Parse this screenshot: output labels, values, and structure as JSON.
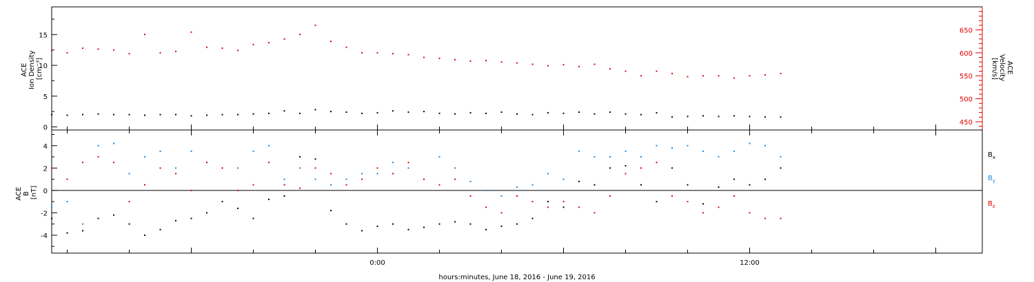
{
  "chart_data": {
    "type": "scatter",
    "xlabel": "hours:minutes, June 18, 2016 - June 19, 2016",
    "x_axis": {
      "unit": "hours relative to 2016-06-19 00:00",
      "range": [
        -10.5,
        19.5
      ],
      "tick_labels": [
        {
          "x": 0,
          "text": "0:00"
        },
        {
          "x": 12,
          "text": "12:00"
        }
      ]
    },
    "colors": {
      "black": "#000000",
      "red": "#e00000",
      "blue": "#1a86d8"
    },
    "panels": [
      {
        "id": "top",
        "ylabel_left": [
          "ACE",
          "Ion Density",
          "[cm⁻³]"
        ],
        "ylabel_right": [
          "ACE",
          "Velocity",
          "[km/s]"
        ],
        "ylim_left": [
          -0.5,
          19.5
        ],
        "yticks_left": [
          0,
          5,
          10,
          15
        ],
        "ylim_right": [
          432,
          700
        ],
        "yticks_right": [
          450,
          500,
          550,
          600,
          650
        ],
        "grid": false,
        "series": [
          {
            "label": "Ion Density",
            "axis": "left",
            "color": "#000000",
            "x": [
              -10.5,
              -10.0,
              -9.5,
              -9.0,
              -8.5,
              -8.0,
              -7.5,
              -7.0,
              -6.5,
              -6.0,
              -5.5,
              -5.0,
              -4.5,
              -4.0,
              -3.5,
              -3.0,
              -2.5,
              -2.0,
              -1.5,
              -1.0,
              -0.5,
              0.0,
              0.5,
              1.0,
              1.5,
              2.0,
              2.5,
              3.0,
              3.5,
              4.0,
              4.5,
              5.0,
              5.5,
              6.0,
              6.5,
              7.0,
              7.5,
              8.0,
              8.5,
              9.0,
              9.5,
              10.0,
              10.5,
              11.0,
              11.5,
              12.0,
              12.5,
              13.0
            ],
            "y": [
              2.0,
              1.9,
              2.0,
              2.1,
              2.0,
              2.0,
              1.9,
              2.0,
              2.0,
              1.8,
              1.9,
              2.0,
              2.0,
              2.1,
              2.2,
              2.6,
              2.2,
              2.8,
              2.5,
              2.4,
              2.2,
              2.3,
              2.6,
              2.4,
              2.5,
              2.2,
              2.1,
              2.3,
              2.2,
              2.4,
              2.1,
              2.0,
              2.3,
              2.2,
              2.4,
              2.1,
              2.4,
              2.1,
              2.0,
              2.3,
              1.6,
              1.7,
              1.8,
              1.7,
              1.8,
              1.7,
              1.6,
              1.6
            ]
          },
          {
            "label": "Velocity",
            "axis": "right",
            "color": "#e00000",
            "x": [
              -10.5,
              -10.0,
              -9.5,
              -9.0,
              -8.5,
              -8.0,
              -7.5,
              -7.0,
              -6.5,
              -6.0,
              -5.5,
              -5.0,
              -4.5,
              -4.0,
              -3.5,
              -3.0,
              -2.5,
              -2.0,
              -1.5,
              -1.0,
              -0.5,
              0.0,
              0.5,
              1.0,
              1.5,
              2.0,
              2.5,
              3.0,
              3.5,
              4.0,
              4.5,
              5.0,
              5.5,
              6.0,
              6.5,
              7.0,
              7.5,
              8.0,
              8.5,
              9.0,
              9.5,
              10.0,
              10.5,
              11.0,
              11.5,
              12.0,
              12.5,
              13.0
            ],
            "y": [
              605,
              600,
              610,
              608,
              606,
              598,
              640,
              600,
              603,
              645,
              612,
              610,
              605,
              618,
              622,
              630,
              640,
              660,
              625,
              612,
              600,
              600,
              598,
              596,
              590,
              588,
              585,
              582,
              583,
              580,
              578,
              575,
              572,
              574,
              570,
              575,
              565,
              560,
              550,
              560,
              555,
              548,
              550,
              550,
              545,
              550,
              552,
              555
            ]
          }
        ]
      },
      {
        "id": "bottom",
        "ylabel_left": [
          "ACE",
          "B",
          "[nT]"
        ],
        "ylim_left": [
          -5.6,
          5.4
        ],
        "yticks_left": [
          -4,
          -2,
          0,
          2,
          4
        ],
        "zero_line": true,
        "grid": false,
        "legend": [
          {
            "name": "Bx",
            "base": "B",
            "sub": "x",
            "color": "#000000"
          },
          {
            "name": "By",
            "base": "B",
            "sub": "y",
            "color": "#1a86d8"
          },
          {
            "name": "Bz",
            "base": "B",
            "sub": "z",
            "color": "#e00000"
          }
        ],
        "series": [
          {
            "label": "Bx",
            "color": "#000000",
            "x": [
              -10.5,
              -10.0,
              -9.5,
              -9.0,
              -8.5,
              -8.0,
              -7.5,
              -7.0,
              -6.5,
              -6.0,
              -5.5,
              -5.0,
              -4.5,
              -4.0,
              -3.5,
              -3.0,
              -2.5,
              -2.0,
              -1.5,
              -1.0,
              -0.5,
              0.0,
              0.5,
              1.0,
              1.5,
              2.0,
              2.5,
              3.0,
              3.5,
              4.0,
              4.5,
              5.0,
              5.5,
              6.0,
              6.5,
              7.0,
              7.5,
              8.0,
              8.5,
              9.0,
              9.5,
              10.0,
              10.5,
              11.0,
              11.5,
              12.0,
              12.5,
              13.0
            ],
            "y": [
              -2.5,
              -3.8,
              -3.6,
              -2.5,
              -2.2,
              -3.0,
              -4.0,
              -3.5,
              -2.7,
              -2.5,
              -2.0,
              -1.0,
              -1.6,
              -2.5,
              -0.8,
              -0.5,
              3.0,
              2.8,
              -1.8,
              -3.0,
              -3.6,
              -3.2,
              -3.0,
              -3.5,
              -3.3,
              -3.0,
              -2.8,
              -3.0,
              -3.5,
              -3.2,
              -3.0,
              -2.5,
              -1.0,
              -1.5,
              0.8,
              0.5,
              2.0,
              2.2,
              0.5,
              -1.0,
              2.0,
              0.5,
              -1.2,
              0.3,
              1.0,
              0.5,
              1.0,
              2.0
            ]
          },
          {
            "label": "By",
            "color": "#1a86d8",
            "x": [
              -10.5,
              -10.0,
              -9.5,
              -9.0,
              -8.5,
              -8.0,
              -7.5,
              -7.0,
              -6.5,
              -6.0,
              -5.5,
              -5.0,
              -4.5,
              -4.0,
              -3.5,
              -3.0,
              -2.5,
              -2.0,
              -1.5,
              -1.0,
              -0.5,
              0.0,
              0.5,
              1.0,
              1.5,
              2.0,
              2.5,
              3.0,
              3.5,
              4.0,
              4.5,
              5.0,
              5.5,
              6.0,
              6.5,
              7.0,
              7.5,
              8.0,
              8.5,
              9.0,
              9.5,
              10.0,
              10.5,
              11.0,
              11.5,
              12.0,
              12.5,
              13.0
            ],
            "y": [
              -1.5,
              -1.0,
              -3.0,
              4.0,
              4.2,
              1.5,
              3.0,
              3.5,
              2.0,
              3.5,
              2.5,
              2.0,
              2.0,
              3.5,
              4.0,
              1.0,
              2.0,
              1.0,
              0.5,
              1.0,
              1.5,
              1.5,
              2.5,
              2.0,
              1.0,
              3.0,
              2.0,
              0.8,
              0.0,
              -0.5,
              0.3,
              0.5,
              1.5,
              1.0,
              3.5,
              3.0,
              3.0,
              3.5,
              3.0,
              4.0,
              3.8,
              4.0,
              3.5,
              3.0,
              3.5,
              4.2,
              4.0,
              3.0
            ]
          },
          {
            "label": "Bz",
            "color": "#e00000",
            "x": [
              -10.5,
              -10.0,
              -9.5,
              -9.0,
              -8.5,
              -8.0,
              -7.5,
              -7.0,
              -6.5,
              -6.0,
              -5.5,
              -5.0,
              -4.5,
              -4.0,
              -3.5,
              -3.0,
              -2.5,
              -2.0,
              -1.5,
              -1.0,
              -0.5,
              0.0,
              0.5,
              1.0,
              1.5,
              2.0,
              2.5,
              3.0,
              3.5,
              4.0,
              4.5,
              5.0,
              5.5,
              6.0,
              6.5,
              7.0,
              7.5,
              8.0,
              8.5,
              9.0,
              9.5,
              10.0,
              10.5,
              11.0,
              11.5,
              12.0,
              12.5,
              13.0
            ],
            "y": [
              2.0,
              1.0,
              2.5,
              3.0,
              2.5,
              -1.0,
              0.5,
              2.0,
              1.5,
              0.0,
              2.5,
              2.0,
              0.0,
              0.5,
              2.5,
              0.5,
              0.2,
              2.0,
              1.5,
              0.5,
              1.0,
              2.0,
              1.5,
              2.5,
              1.0,
              0.5,
              1.0,
              -0.5,
              -1.5,
              -2.0,
              -0.5,
              -1.0,
              -1.5,
              -1.0,
              -1.5,
              -2.0,
              -0.5,
              1.5,
              2.0,
              2.5,
              -0.5,
              -1.0,
              -2.0,
              -1.5,
              -0.5,
              -2.0,
              -2.5,
              -2.5
            ]
          }
        ]
      }
    ]
  }
}
